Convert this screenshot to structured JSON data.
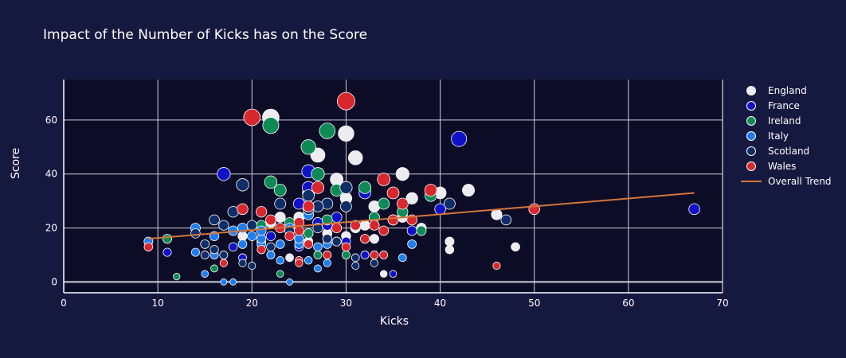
{
  "colors": {
    "background": "#16193f",
    "plot_background": "#0c0c27",
    "grid": "#cfcfdc",
    "England": "#ececf1",
    "France": "#1010c8",
    "Ireland": "#0d8a55",
    "Italy": "#1e7ef0",
    "Scotland": "#0f2d66",
    "Wales": "#d9272e",
    "trend": "#d2773b"
  },
  "chart_data": {
    "type": "scatter",
    "title": "Impact of the Number of Kicks has on the Score",
    "xlabel": "Kicks",
    "ylabel": "Score",
    "xlim": [
      0,
      70
    ],
    "ylim": [
      -4,
      75
    ],
    "x_ticks": [
      0,
      10,
      20,
      30,
      40,
      50,
      60,
      70
    ],
    "y_ticks": [
      0,
      20,
      40,
      60
    ],
    "grid": true,
    "legend_position": "right",
    "marker_size_encodes": "Score",
    "series": [
      {
        "name": "England",
        "points": [
          [
            22,
            61
          ],
          [
            30,
            55
          ],
          [
            31,
            46
          ],
          [
            27,
            47
          ],
          [
            36,
            40
          ],
          [
            29,
            38
          ],
          [
            30,
            31
          ],
          [
            26,
            33
          ],
          [
            43,
            34
          ],
          [
            40,
            33
          ],
          [
            37,
            31
          ],
          [
            33,
            28
          ],
          [
            46,
            25
          ],
          [
            38,
            20
          ],
          [
            41,
            15
          ],
          [
            41,
            12
          ],
          [
            48,
            13
          ],
          [
            34,
            3
          ],
          [
            32,
            21
          ],
          [
            33,
            16
          ],
          [
            24,
            9
          ],
          [
            25,
            24
          ],
          [
            27,
            22
          ],
          [
            29,
            15
          ],
          [
            31,
            20
          ],
          [
            36,
            24
          ],
          [
            28,
            18
          ],
          [
            22,
            22
          ],
          [
            19,
            17
          ],
          [
            26,
            15
          ],
          [
            30,
            17
          ],
          [
            35,
            23
          ],
          [
            23,
            24
          ]
        ]
      },
      {
        "name": "France",
        "points": [
          [
            42,
            53
          ],
          [
            17,
            40
          ],
          [
            26,
            41
          ],
          [
            26,
            35
          ],
          [
            67,
            27
          ],
          [
            32,
            33
          ],
          [
            40,
            27
          ],
          [
            25,
            29
          ],
          [
            35,
            23
          ],
          [
            29,
            24
          ],
          [
            27,
            22
          ],
          [
            24,
            20
          ],
          [
            22,
            17
          ],
          [
            18,
            13
          ],
          [
            11,
            11
          ],
          [
            30,
            15
          ],
          [
            35,
            3
          ],
          [
            32,
            10
          ],
          [
            21,
            15
          ],
          [
            28,
            21
          ],
          [
            25,
            13
          ],
          [
            19,
            9
          ],
          [
            37,
            19
          ],
          [
            26,
            18
          ],
          [
            29,
            15
          ]
        ]
      },
      {
        "name": "Ireland",
        "points": [
          [
            22,
            58
          ],
          [
            28,
            56
          ],
          [
            26,
            50
          ],
          [
            27,
            40
          ],
          [
            22,
            37
          ],
          [
            23,
            34
          ],
          [
            29,
            34
          ],
          [
            39,
            32
          ],
          [
            32,
            35
          ],
          [
            34,
            29
          ],
          [
            33,
            24
          ],
          [
            36,
            26
          ],
          [
            28,
            23
          ],
          [
            24,
            22
          ],
          [
            23,
            3
          ],
          [
            12,
            2
          ],
          [
            16,
            5
          ],
          [
            30,
            10
          ],
          [
            11,
            16
          ],
          [
            21,
            21
          ],
          [
            26,
            18
          ],
          [
            38,
            19
          ],
          [
            27,
            10
          ],
          [
            25,
            16
          ]
        ]
      },
      {
        "name": "Italy",
        "points": [
          [
            9,
            15
          ],
          [
            14,
            11
          ],
          [
            14,
            20
          ],
          [
            16,
            17
          ],
          [
            18,
            19
          ],
          [
            19,
            20
          ],
          [
            20,
            17
          ],
          [
            21,
            14
          ],
          [
            21,
            16
          ],
          [
            22,
            10
          ],
          [
            23,
            14
          ],
          [
            24,
            20
          ],
          [
            25,
            14
          ],
          [
            25,
            16
          ],
          [
            26,
            25
          ],
          [
            27,
            13
          ],
          [
            27,
            5
          ],
          [
            28,
            7
          ],
          [
            28,
            14
          ],
          [
            29,
            20
          ],
          [
            17,
            0
          ],
          [
            18,
            0
          ],
          [
            15,
            3
          ],
          [
            24,
            0
          ],
          [
            16,
            10
          ],
          [
            19,
            14
          ],
          [
            23,
            8
          ],
          [
            36,
            9
          ],
          [
            37,
            14
          ],
          [
            21,
            19
          ],
          [
            26,
            8
          ]
        ]
      },
      {
        "name": "Scotland",
        "points": [
          [
            19,
            36
          ],
          [
            30,
            35
          ],
          [
            26,
            32
          ],
          [
            28,
            29
          ],
          [
            27,
            28
          ],
          [
            23,
            29
          ],
          [
            41,
            29
          ],
          [
            47,
            23
          ],
          [
            18,
            26
          ],
          [
            16,
            23
          ],
          [
            17,
            21
          ],
          [
            15,
            14
          ],
          [
            16,
            12
          ],
          [
            17,
            10
          ],
          [
            19,
            7
          ],
          [
            20,
            6
          ],
          [
            27,
            20
          ],
          [
            28,
            16
          ],
          [
            30,
            28
          ],
          [
            31,
            9
          ],
          [
            31,
            6
          ],
          [
            33,
            7
          ],
          [
            20,
            21
          ],
          [
            24,
            19
          ],
          [
            22,
            13
          ],
          [
            14,
            18
          ],
          [
            15,
            10
          ],
          [
            26,
            27
          ],
          [
            29,
            15
          ]
        ]
      },
      {
        "name": "Wales",
        "points": [
          [
            30,
            67
          ],
          [
            20,
            61
          ],
          [
            34,
            38
          ],
          [
            27,
            35
          ],
          [
            39,
            34
          ],
          [
            35,
            33
          ],
          [
            36,
            29
          ],
          [
            26,
            28
          ],
          [
            19,
            27
          ],
          [
            21,
            26
          ],
          [
            25,
            22
          ],
          [
            35,
            23
          ],
          [
            37,
            23
          ],
          [
            50,
            27
          ],
          [
            23,
            20
          ],
          [
            21,
            12
          ],
          [
            22,
            23
          ],
          [
            25,
            8
          ],
          [
            25,
            7
          ],
          [
            17,
            7
          ],
          [
            9,
            13
          ],
          [
            33,
            10
          ],
          [
            34,
            10
          ],
          [
            46,
            6
          ],
          [
            28,
            10
          ],
          [
            31,
            21
          ],
          [
            32,
            16
          ],
          [
            34,
            19
          ],
          [
            24,
            17
          ],
          [
            26,
            14
          ],
          [
            30,
            13
          ],
          [
            25,
            19
          ],
          [
            29,
            20
          ],
          [
            33,
            21
          ]
        ]
      },
      {
        "name": "Overall Trend",
        "type": "line",
        "points": [
          [
            9,
            16
          ],
          [
            67,
            33
          ]
        ]
      }
    ]
  }
}
